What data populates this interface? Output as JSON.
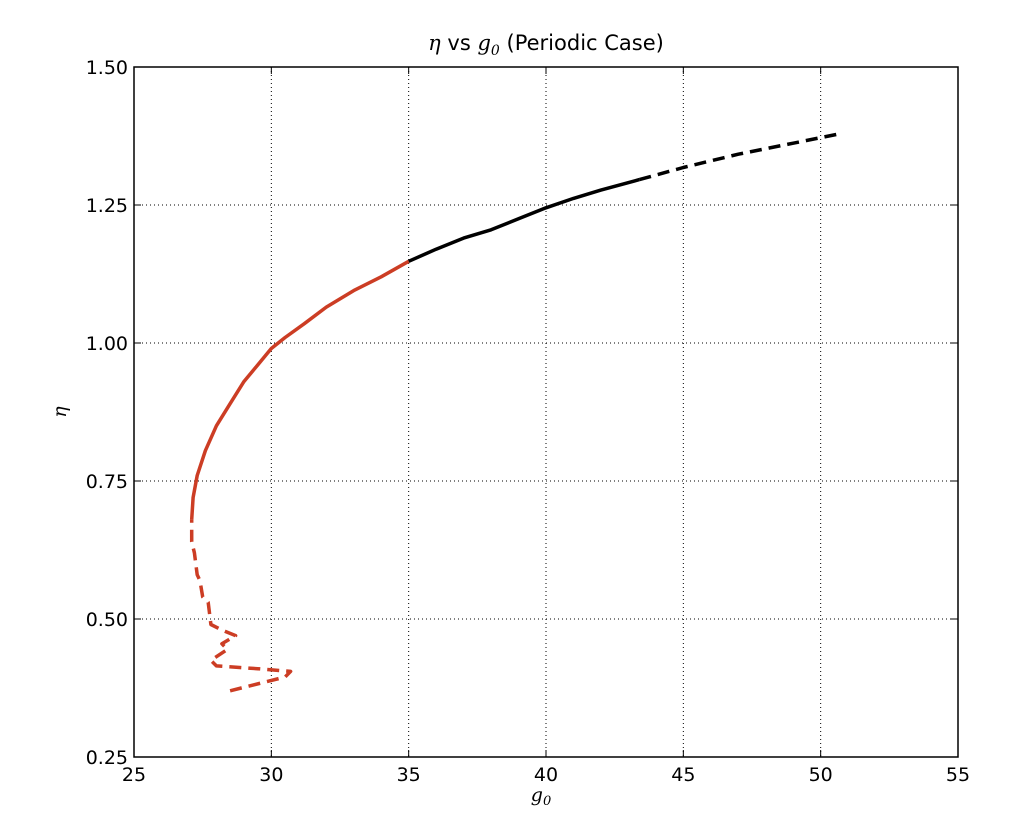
{
  "chart_data": {
    "type": "line",
    "title": {
      "eta": "η",
      "vs": " vs ",
      "g": "g",
      "sub": "0",
      "suffix": " (Periodic Case)"
    },
    "xlabel": {
      "g": "g",
      "sub": "0"
    },
    "ylabel": "η",
    "xlim": [
      25,
      55
    ],
    "ylim": [
      0.25,
      1.5
    ],
    "xticks": [
      25,
      30,
      35,
      40,
      45,
      50,
      55
    ],
    "yticks": [
      0.25,
      0.5,
      0.75,
      1.0,
      1.25,
      1.5
    ],
    "xtick_labels": [
      "25",
      "30",
      "35",
      "40",
      "45",
      "50",
      "55"
    ],
    "ytick_labels": [
      "0.25",
      "0.50",
      "0.75",
      "1.00",
      "1.25",
      "1.50"
    ],
    "grid": true,
    "series": [
      {
        "style": "dashed",
        "color": "#cc3d24",
        "x": [
          28.5,
          30.5,
          30.7,
          29.5,
          28.0,
          27.8,
          28.4,
          28.2,
          28.7,
          28.2,
          27.8,
          27.7,
          27.5,
          27.4,
          27.3,
          27.2,
          27.1,
          27.1
        ],
        "y": [
          0.37,
          0.395,
          0.405,
          0.41,
          0.415,
          0.425,
          0.445,
          0.455,
          0.47,
          0.48,
          0.49,
          0.53,
          0.54,
          0.57,
          0.58,
          0.62,
          0.64,
          0.68
        ]
      },
      {
        "style": "solid",
        "color": "#cc3d24",
        "x": [
          27.1,
          27.15,
          27.3,
          27.6,
          28.0,
          28.5,
          29.0,
          29.5,
          30.0,
          30.5,
          31.2,
          32.0,
          33.0,
          34.0,
          35.0
        ],
        "y": [
          0.68,
          0.72,
          0.76,
          0.805,
          0.85,
          0.89,
          0.93,
          0.96,
          0.99,
          1.01,
          1.035,
          1.065,
          1.095,
          1.12,
          1.148
        ]
      },
      {
        "style": "solid",
        "color": "#000000",
        "x": [
          35.0,
          36.0,
          37.0,
          38.0,
          39.0,
          40.0,
          41.0,
          42.0,
          43.4
        ],
        "y": [
          1.148,
          1.17,
          1.19,
          1.205,
          1.225,
          1.245,
          1.262,
          1.277,
          1.296
        ]
      },
      {
        "style": "dashed",
        "color": "#000000",
        "x": [
          43.4,
          45.0,
          47.0,
          49.0,
          50.6
        ],
        "y": [
          1.296,
          1.318,
          1.342,
          1.362,
          1.378
        ]
      }
    ]
  }
}
